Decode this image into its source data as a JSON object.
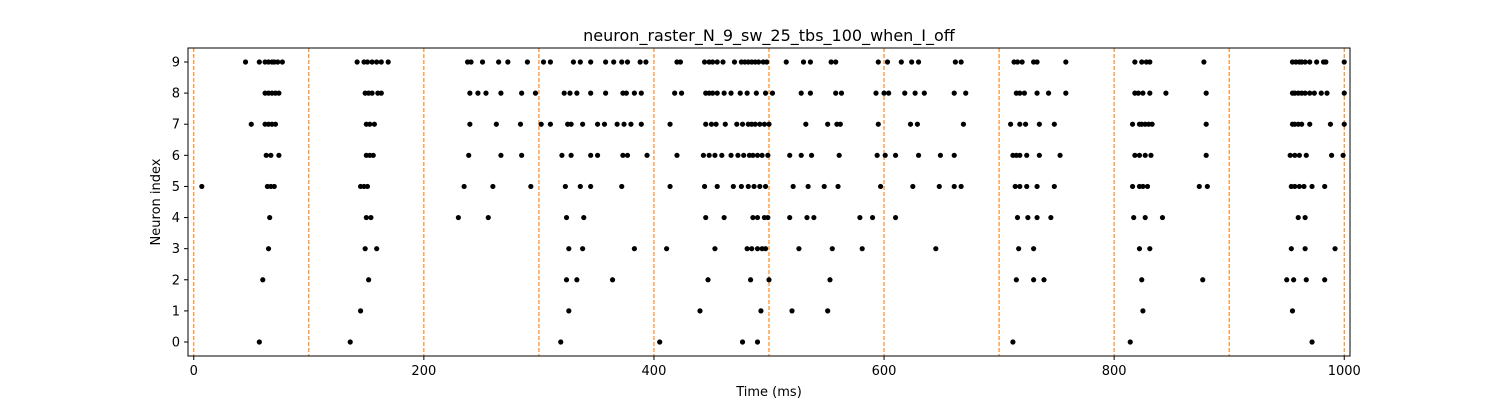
{
  "chart_data": {
    "type": "scatter",
    "title": "neuron_raster_N_9_sw_25_tbs_100_when_I_off",
    "xlabel": "Time (ms)",
    "ylabel": "Neuron index",
    "xlim": [
      -5,
      1005
    ],
    "ylim": [
      -0.45,
      9.45
    ],
    "xticks": [
      0,
      200,
      400,
      600,
      800,
      1000
    ],
    "yticks": [
      0,
      1,
      2,
      3,
      4,
      5,
      6,
      7,
      8,
      9
    ],
    "grid": false,
    "point_color": "#000000",
    "vline_color": "#ff7f0e",
    "vlines": [
      0,
      100,
      200,
      300,
      400,
      500,
      600,
      700,
      800,
      900,
      1000
    ],
    "spikes": [
      {
        "neuron": 9,
        "times": [
          45,
          57,
          62,
          65,
          68,
          70,
          73,
          77,
          142,
          148,
          151,
          155,
          159,
          163,
          169,
          238,
          241,
          251,
          265,
          273,
          290,
          304,
          310,
          330,
          336,
          345,
          358,
          365,
          372,
          377,
          388,
          393,
          420,
          423,
          444,
          448,
          451,
          455,
          460,
          470,
          476,
          479,
          482,
          485,
          488,
          491,
          495,
          498,
          515,
          530,
          536,
          554,
          558,
          595,
          603,
          615,
          624,
          630,
          662,
          667,
          713,
          716,
          720,
          730,
          733,
          758,
          818,
          824,
          828,
          831,
          878,
          955,
          958,
          961,
          963,
          966,
          970,
          976,
          982,
          984,
          1000
        ]
      },
      {
        "neuron": 8,
        "times": [
          62,
          65,
          68,
          71,
          74,
          149,
          152,
          155,
          160,
          163,
          240,
          247,
          254,
          267,
          285,
          297,
          322,
          327,
          333,
          345,
          358,
          373,
          376,
          383,
          389,
          418,
          424,
          445,
          448,
          451,
          455,
          461,
          467,
          475,
          481,
          489,
          497,
          503,
          528,
          536,
          558,
          563,
          593,
          600,
          604,
          618,
          627,
          635,
          661,
          671,
          715,
          718,
          722,
          733,
          743,
          758,
          818,
          821,
          825,
          831,
          845,
          880,
          955,
          957,
          960,
          963,
          966,
          970,
          974,
          980,
          985,
          1000
        ]
      },
      {
        "neuron": 7,
        "times": [
          50,
          62,
          65,
          68,
          71,
          150,
          153,
          157,
          240,
          263,
          284,
          302,
          310,
          325,
          328,
          338,
          351,
          357,
          368,
          374,
          380,
          389,
          414,
          445,
          450,
          454,
          462,
          472,
          477,
          482,
          485,
          488,
          492,
          496,
          500,
          532,
          551,
          559,
          562,
          595,
          623,
          629,
          669,
          710,
          718,
          723,
          735,
          748,
          816,
          822,
          824,
          827,
          830,
          833,
          880,
          955,
          957,
          960,
          963,
          970,
          988,
          1000
        ]
      },
      {
        "neuron": 6,
        "times": [
          63,
          67,
          74,
          150,
          153,
          156,
          239,
          267,
          285,
          320,
          328,
          345,
          351,
          373,
          377,
          394,
          420,
          443,
          448,
          453,
          459,
          467,
          473,
          478,
          483,
          486,
          490,
          494,
          499,
          518,
          528,
          537,
          561,
          594,
          601,
          610,
          630,
          649,
          661,
          712,
          715,
          718,
          724,
          735,
          753,
          818,
          822,
          827,
          832,
          880,
          953,
          957,
          961,
          967,
          989,
          999
        ]
      },
      {
        "neuron": 5,
        "times": [
          7,
          64,
          67,
          70,
          145,
          148,
          151,
          235,
          260,
          293,
          323,
          336,
          345,
          372,
          414,
          444,
          455,
          469,
          476,
          482,
          487,
          492,
          497,
          521,
          534,
          548,
          560,
          597,
          625,
          648,
          661,
          667,
          714,
          718,
          724,
          733,
          748,
          816,
          822,
          825,
          829,
          874,
          881,
          954,
          957,
          961,
          965,
          972,
          983
        ]
      },
      {
        "neuron": 4,
        "times": [
          66,
          150,
          154,
          230,
          256,
          324,
          339,
          445,
          461,
          486,
          490,
          496,
          499,
          518,
          533,
          539,
          579,
          590,
          610,
          716,
          725,
          733,
          745,
          817,
          827,
          842,
          960,
          966
        ]
      },
      {
        "neuron": 3,
        "times": [
          65,
          149,
          159,
          326,
          338,
          383,
          411,
          453,
          481,
          485,
          490,
          494,
          497,
          526,
          555,
          581,
          645,
          717,
          730,
          822,
          831,
          954,
          966,
          992
        ]
      },
      {
        "neuron": 2,
        "times": [
          60,
          152,
          324,
          333,
          364,
          447,
          484,
          500,
          553,
          715,
          730,
          739,
          824,
          877,
          950,
          956,
          967,
          983
        ]
      },
      {
        "neuron": 1,
        "times": [
          145,
          326,
          440,
          493,
          520,
          551,
          825,
          955
        ]
      },
      {
        "neuron": 0,
        "times": [
          57,
          136,
          319,
          405,
          477,
          490,
          712,
          814,
          972
        ]
      }
    ]
  }
}
